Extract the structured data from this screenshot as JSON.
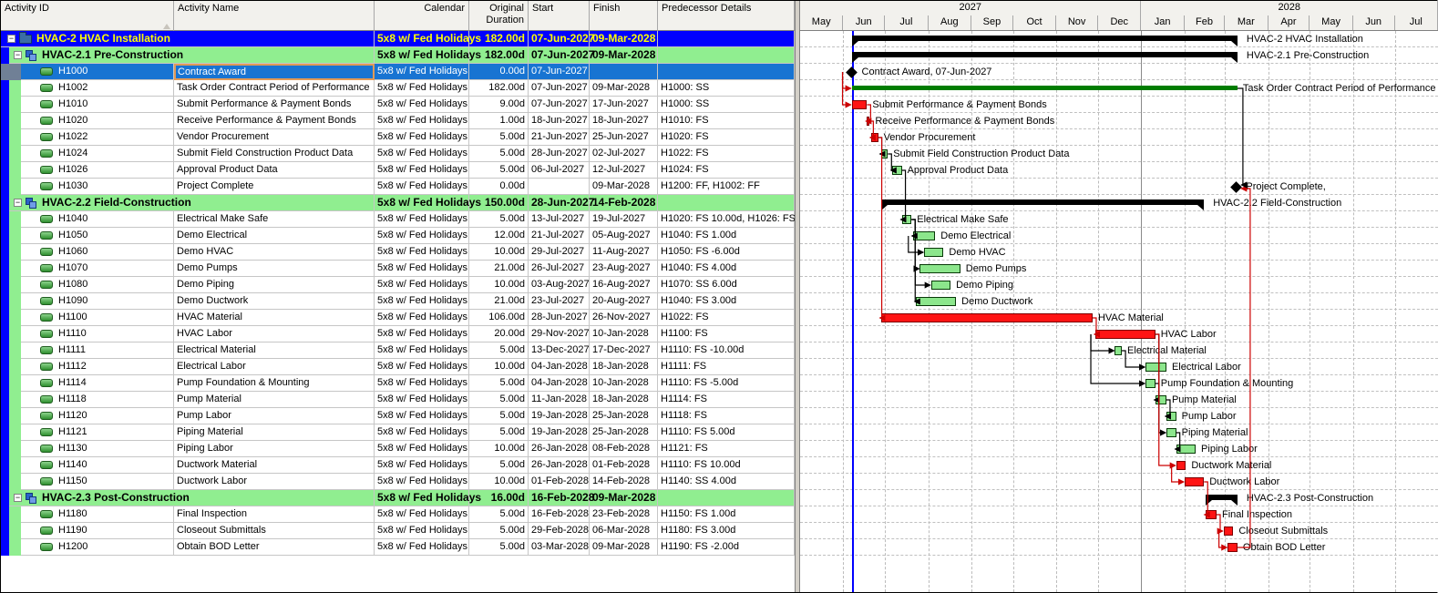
{
  "table": {
    "columns": [
      {
        "key": "id",
        "label": "Activity ID"
      },
      {
        "key": "name",
        "label": "Activity Name"
      },
      {
        "key": "cal",
        "label": "Calendar"
      },
      {
        "key": "dur",
        "label": "Original Duration"
      },
      {
        "key": "start",
        "label": "Start"
      },
      {
        "key": "fin",
        "label": "Finish"
      },
      {
        "key": "pred",
        "label": "Predecessor Details"
      }
    ],
    "rows": [
      {
        "type": "proj",
        "id": "HVAC-2",
        "name": "HVAC-2  HVAC Installation",
        "cal": "5x8 w/ Fed Holidays",
        "dur": "182.00d",
        "start": "07-Jun-2027",
        "fin": "09-Mar-2028",
        "pred": "",
        "bar": "summary",
        "bs": "2027-06-07",
        "bf": "2028-03-09",
        "label": "HVAC-2  HVAC Installation"
      },
      {
        "type": "wbs",
        "id": "HVAC-2.1",
        "name": "HVAC-2.1  Pre-Construction",
        "cal": "5x8 w/ Fed Holidays",
        "dur": "182.00d",
        "start": "07-Jun-2027",
        "fin": "09-Mar-2028",
        "pred": "",
        "bar": "summary",
        "bs": "2027-06-07",
        "bf": "2028-03-09",
        "label": "HVAC-2.1  Pre-Construction"
      },
      {
        "type": "act",
        "sel": true,
        "id": "H1000",
        "name": "Contract Award",
        "cal": "5x8 w/ Fed Holidays",
        "dur": "0.00d",
        "start": "07-Jun-2027",
        "fin": "",
        "pred": "",
        "bar": "milestone",
        "bs": "2027-06-07",
        "label": "Contract Award, 07-Jun-2027"
      },
      {
        "type": "act",
        "id": "H1002",
        "name": "Task Order Contract Period of Performance",
        "cal": "5x8 w/ Fed Holidays",
        "dur": "182.00d",
        "start": "07-Jun-2027",
        "fin": "09-Mar-2028",
        "pred": "H1000: SS",
        "bar": "line",
        "bs": "2027-06-07",
        "bf": "2028-03-09",
        "label": "Task Order Contract Period of Performance"
      },
      {
        "type": "act",
        "id": "H1010",
        "name": "Submit Performance & Payment Bonds",
        "cal": "5x8 w/ Fed Holidays",
        "dur": "9.00d",
        "start": "07-Jun-2027",
        "fin": "17-Jun-2027",
        "pred": "H1000: SS",
        "bar": "task",
        "crit": true,
        "bs": "2027-06-07",
        "bf": "2027-06-17",
        "label": "Submit Performance & Payment Bonds"
      },
      {
        "type": "act",
        "id": "H1020",
        "name": "Receive Performance & Payment Bonds",
        "cal": "5x8 w/ Fed Holidays",
        "dur": "1.00d",
        "start": "18-Jun-2027",
        "fin": "18-Jun-2027",
        "pred": "H1010: FS",
        "bar": "task",
        "crit": true,
        "bs": "2027-06-18",
        "bf": "2027-06-18",
        "label": "Receive Performance & Payment Bonds"
      },
      {
        "type": "act",
        "id": "H1022",
        "name": "Vendor Procurement",
        "cal": "5x8 w/ Fed Holidays",
        "dur": "5.00d",
        "start": "21-Jun-2027",
        "fin": "25-Jun-2027",
        "pred": "H1020: FS",
        "bar": "task",
        "crit": true,
        "bs": "2027-06-21",
        "bf": "2027-06-25",
        "label": "Vendor Procurement"
      },
      {
        "type": "act",
        "id": "H1024",
        "name": "Submit Field Construction Product Data",
        "cal": "5x8 w/ Fed Holidays",
        "dur": "5.00d",
        "start": "28-Jun-2027",
        "fin": "02-Jul-2027",
        "pred": "H1022: FS",
        "bar": "task",
        "bs": "2027-06-28",
        "bf": "2027-07-02",
        "label": "Submit Field Construction Product Data"
      },
      {
        "type": "act",
        "id": "H1026",
        "name": "Approval Product Data",
        "cal": "5x8 w/ Fed Holidays",
        "dur": "5.00d",
        "start": "06-Jul-2027",
        "fin": "12-Jul-2027",
        "pred": "H1024: FS",
        "bar": "task",
        "bs": "2027-07-06",
        "bf": "2027-07-12",
        "label": "Approval Product Data"
      },
      {
        "type": "act",
        "id": "H1030",
        "name": "Project Complete",
        "cal": "5x8 w/ Fed Holidays",
        "dur": "0.00d",
        "start": "",
        "fin": "09-Mar-2028",
        "pred": "H1200: FF, H1002: FF",
        "bar": "milestone",
        "bs": "2028-03-09",
        "label": "Project Complete,"
      },
      {
        "type": "wbs",
        "id": "HVAC-2.2",
        "name": "HVAC-2.2  Field-Construction",
        "cal": "5x8 w/ Fed Holidays",
        "dur": "150.00d",
        "start": "28-Jun-2027",
        "fin": "14-Feb-2028",
        "pred": "",
        "bar": "summary",
        "bs": "2027-06-28",
        "bf": "2028-02-14",
        "label": "HVAC-2.2  Field-Construction"
      },
      {
        "type": "act",
        "id": "H1040",
        "name": "Electrical Make Safe",
        "cal": "5x8 w/ Fed Holidays",
        "dur": "5.00d",
        "start": "13-Jul-2027",
        "fin": "19-Jul-2027",
        "pred": "H1020: FS 10.00d, H1026: FS",
        "bar": "task",
        "bs": "2027-07-13",
        "bf": "2027-07-19",
        "label": "Electrical Make Safe"
      },
      {
        "type": "act",
        "id": "H1050",
        "name": "Demo Electrical",
        "cal": "5x8 w/ Fed Holidays",
        "dur": "12.00d",
        "start": "21-Jul-2027",
        "fin": "05-Aug-2027",
        "pred": "H1040: FS 1.00d",
        "bar": "task",
        "bs": "2027-07-21",
        "bf": "2027-08-05",
        "label": "Demo Electrical"
      },
      {
        "type": "act",
        "id": "H1060",
        "name": "Demo HVAC",
        "cal": "5x8 w/ Fed Holidays",
        "dur": "10.00d",
        "start": "29-Jul-2027",
        "fin": "11-Aug-2027",
        "pred": "H1050: FS -6.00d",
        "bar": "task",
        "bs": "2027-07-29",
        "bf": "2027-08-11",
        "label": "Demo HVAC"
      },
      {
        "type": "act",
        "id": "H1070",
        "name": "Demo Pumps",
        "cal": "5x8 w/ Fed Holidays",
        "dur": "21.00d",
        "start": "26-Jul-2027",
        "fin": "23-Aug-2027",
        "pred": "H1040: FS 4.00d",
        "bar": "task",
        "bs": "2027-07-26",
        "bf": "2027-08-23",
        "label": "Demo Pumps"
      },
      {
        "type": "act",
        "id": "H1080",
        "name": "Demo Piping",
        "cal": "5x8 w/ Fed Holidays",
        "dur": "10.00d",
        "start": "03-Aug-2027",
        "fin": "16-Aug-2027",
        "pred": "H1070: SS 6.00d",
        "bar": "task",
        "bs": "2027-08-03",
        "bf": "2027-08-16",
        "label": "Demo Piping"
      },
      {
        "type": "act",
        "id": "H1090",
        "name": "Demo Ductwork",
        "cal": "5x8 w/ Fed Holidays",
        "dur": "21.00d",
        "start": "23-Jul-2027",
        "fin": "20-Aug-2027",
        "pred": "H1040: FS 3.00d",
        "bar": "task",
        "bs": "2027-07-23",
        "bf": "2027-08-20",
        "label": "Demo Ductwork"
      },
      {
        "type": "act",
        "id": "H1100",
        "name": "HVAC Material",
        "cal": "5x8 w/ Fed Holidays",
        "dur": "106.00d",
        "start": "28-Jun-2027",
        "fin": "26-Nov-2027",
        "pred": "H1022: FS",
        "bar": "task",
        "crit": true,
        "bs": "2027-06-28",
        "bf": "2027-11-26",
        "label": "HVAC Material"
      },
      {
        "type": "act",
        "id": "H1110",
        "name": "HVAC Labor",
        "cal": "5x8 w/ Fed Holidays",
        "dur": "20.00d",
        "start": "29-Nov-2027",
        "fin": "10-Jan-2028",
        "pred": "H1100: FS",
        "bar": "task",
        "crit": true,
        "bs": "2027-11-29",
        "bf": "2028-01-10",
        "label": "HVAC Labor"
      },
      {
        "type": "act",
        "id": "H1111",
        "name": "Electrical Material",
        "cal": "5x8 w/ Fed Holidays",
        "dur": "5.00d",
        "start": "13-Dec-2027",
        "fin": "17-Dec-2027",
        "pred": "H1110: FS -10.00d",
        "bar": "task",
        "bs": "2027-12-13",
        "bf": "2027-12-17",
        "label": "Electrical Material"
      },
      {
        "type": "act",
        "id": "H1112",
        "name": "Electrical Labor",
        "cal": "5x8 w/ Fed Holidays",
        "dur": "10.00d",
        "start": "04-Jan-2028",
        "fin": "18-Jan-2028",
        "pred": "H1111: FS",
        "bar": "task",
        "bs": "2028-01-04",
        "bf": "2028-01-18",
        "label": "Electrical Labor"
      },
      {
        "type": "act",
        "id": "H1114",
        "name": "Pump Foundation & Mounting",
        "cal": "5x8 w/ Fed Holidays",
        "dur": "5.00d",
        "start": "04-Jan-2028",
        "fin": "10-Jan-2028",
        "pred": "H1110: FS -5.00d",
        "bar": "task",
        "bs": "2028-01-04",
        "bf": "2028-01-10",
        "label": "Pump Foundation & Mounting"
      },
      {
        "type": "act",
        "id": "H1118",
        "name": "Pump Material",
        "cal": "5x8 w/ Fed Holidays",
        "dur": "5.00d",
        "start": "11-Jan-2028",
        "fin": "18-Jan-2028",
        "pred": "H1114: FS",
        "bar": "task",
        "bs": "2028-01-11",
        "bf": "2028-01-18",
        "label": "Pump Material"
      },
      {
        "type": "act",
        "id": "H1120",
        "name": "Pump Labor",
        "cal": "5x8 w/ Fed Holidays",
        "dur": "5.00d",
        "start": "19-Jan-2028",
        "fin": "25-Jan-2028",
        "pred": "H1118: FS",
        "bar": "task",
        "bs": "2028-01-19",
        "bf": "2028-01-25",
        "label": "Pump Labor"
      },
      {
        "type": "act",
        "id": "H1121",
        "name": "Piping Material",
        "cal": "5x8 w/ Fed Holidays",
        "dur": "5.00d",
        "start": "19-Jan-2028",
        "fin": "25-Jan-2028",
        "pred": "H1110: FS 5.00d",
        "bar": "task",
        "bs": "2028-01-19",
        "bf": "2028-01-25",
        "label": "Piping Material"
      },
      {
        "type": "act",
        "id": "H1130",
        "name": "Piping Labor",
        "cal": "5x8 w/ Fed Holidays",
        "dur": "10.00d",
        "start": "26-Jan-2028",
        "fin": "08-Feb-2028",
        "pred": "H1121: FS",
        "bar": "task",
        "bs": "2028-01-26",
        "bf": "2028-02-08",
        "label": "Piping Labor"
      },
      {
        "type": "act",
        "id": "H1140",
        "name": "Ductwork Material",
        "cal": "5x8 w/ Fed Holidays",
        "dur": "5.00d",
        "start": "26-Jan-2028",
        "fin": "01-Feb-2028",
        "pred": "H1110: FS 10.00d",
        "bar": "task",
        "crit": true,
        "bs": "2028-01-26",
        "bf": "2028-02-01",
        "label": "Ductwork Material"
      },
      {
        "type": "act",
        "id": "H1150",
        "name": "Ductwork Labor",
        "cal": "5x8 w/ Fed Holidays",
        "dur": "10.00d",
        "start": "01-Feb-2028",
        "fin": "14-Feb-2028",
        "pred": "H1140: SS 4.00d",
        "bar": "task",
        "crit": true,
        "bs": "2028-02-01",
        "bf": "2028-02-14",
        "label": "Ductwork Labor"
      },
      {
        "type": "wbs",
        "id": "HVAC-2.3",
        "name": "HVAC-2.3  Post-Construction",
        "cal": "5x8 w/ Fed Holidays",
        "dur": "16.00d",
        "start": "16-Feb-2028",
        "fin": "09-Mar-2028",
        "pred": "",
        "bar": "summary",
        "bs": "2028-02-16",
        "bf": "2028-03-09",
        "label": "HVAC-2.3  Post-Construction"
      },
      {
        "type": "act",
        "id": "H1180",
        "name": "Final Inspection",
        "cal": "5x8 w/ Fed Holidays",
        "dur": "5.00d",
        "start": "16-Feb-2028",
        "fin": "23-Feb-2028",
        "pred": "H1150: FS 1.00d",
        "bar": "task",
        "crit": true,
        "bs": "2028-02-16",
        "bf": "2028-02-23",
        "label": "Final Inspection"
      },
      {
        "type": "act",
        "id": "H1190",
        "name": "Closeout Submittals",
        "cal": "5x8 w/ Fed Holidays",
        "dur": "5.00d",
        "start": "29-Feb-2028",
        "fin": "06-Mar-2028",
        "pred": "H1180: FS 3.00d",
        "bar": "task",
        "crit": true,
        "bs": "2028-02-29",
        "bf": "2028-03-06",
        "label": "Closeout Submittals"
      },
      {
        "type": "act",
        "id": "H1200",
        "name": "Obtain BOD Letter",
        "cal": "5x8 w/ Fed Holidays",
        "dur": "5.00d",
        "start": "03-Mar-2028",
        "fin": "09-Mar-2028",
        "pred": "H1190: FS -2.00d",
        "bar": "task",
        "crit": true,
        "bs": "2028-03-03",
        "bf": "2028-03-09",
        "label": "Obtain BOD Letter"
      }
    ]
  },
  "timeline": {
    "start_month": "2027-05",
    "years": [
      {
        "label": "2027",
        "months": [
          "May",
          "Jun",
          "Jul",
          "Aug",
          "Sep",
          "Oct",
          "Nov",
          "Dec"
        ]
      },
      {
        "label": "2028",
        "months": [
          "Jan",
          "Feb",
          "Mar",
          "Apr",
          "May",
          "Jun",
          "Jul"
        ]
      }
    ],
    "data_date": "2027-06-07"
  },
  "gantt_links": [
    {
      "from": "H1000",
      "to": "H1002",
      "color": "red",
      "mode": "ss"
    },
    {
      "from": "H1000",
      "to": "H1010",
      "color": "red",
      "mode": "ss"
    },
    {
      "from": "H1010",
      "to": "H1020",
      "color": "red",
      "mode": "fs"
    },
    {
      "from": "H1020",
      "to": "H1022",
      "color": "red",
      "mode": "fs"
    },
    {
      "from": "H1022",
      "to": "H1024",
      "color": "black",
      "mode": "fs"
    },
    {
      "from": "H1024",
      "to": "H1026",
      "color": "black",
      "mode": "fs"
    },
    {
      "from": "H1026",
      "to": "H1040",
      "color": "black",
      "mode": "fs"
    },
    {
      "from": "H1040",
      "to": "H1050",
      "color": "black",
      "mode": "fs"
    },
    {
      "from": "H1050",
      "to": "H1060",
      "color": "black",
      "mode": "ss"
    },
    {
      "from": "H1040",
      "to": "H1070",
      "color": "black",
      "mode": "fs"
    },
    {
      "from": "H1070",
      "to": "H1080",
      "color": "black",
      "mode": "ss"
    },
    {
      "from": "H1040",
      "to": "H1090",
      "color": "black",
      "mode": "fs"
    },
    {
      "from": "H1022",
      "to": "H1100",
      "color": "red",
      "mode": "fs"
    },
    {
      "from": "H1100",
      "to": "H1110",
      "color": "red",
      "mode": "fs"
    },
    {
      "from": "H1110",
      "to": "H1111",
      "color": "black",
      "mode": "ss"
    },
    {
      "from": "H1111",
      "to": "H1112",
      "color": "black",
      "mode": "fs"
    },
    {
      "from": "H1110",
      "to": "H1114",
      "color": "black",
      "mode": "ss"
    },
    {
      "from": "H1114",
      "to": "H1118",
      "color": "black",
      "mode": "fs"
    },
    {
      "from": "H1118",
      "to": "H1120",
      "color": "black",
      "mode": "fs"
    },
    {
      "from": "H1110",
      "to": "H1121",
      "color": "black",
      "mode": "fs"
    },
    {
      "from": "H1121",
      "to": "H1130",
      "color": "black",
      "mode": "fs"
    },
    {
      "from": "H1110",
      "to": "H1140",
      "color": "red",
      "mode": "fs"
    },
    {
      "from": "H1140",
      "to": "H1150",
      "color": "red",
      "mode": "ss"
    },
    {
      "from": "H1150",
      "to": "H1180",
      "color": "red",
      "mode": "fs"
    },
    {
      "from": "H1180",
      "to": "H1190",
      "color": "red",
      "mode": "fs"
    },
    {
      "from": "H1190",
      "to": "H1200",
      "color": "red",
      "mode": "ss"
    },
    {
      "from": "H1200",
      "to": "H1030",
      "color": "red",
      "mode": "ff",
      "lane": 14
    },
    {
      "from": "H1002",
      "to": "H1030",
      "color": "black",
      "mode": "ff",
      "lane": 6
    }
  ],
  "colors": {
    "project_band": "#0000ff",
    "wbs_band": "#90ee90",
    "selection": "#1874d2",
    "edit_border": "#e19a57",
    "critical": "#ff1414",
    "normal_task": "#8ce68c",
    "summary": "#000000",
    "period_line": "#007d00",
    "data_date_line": "#0000ff",
    "link_red": "#cc0000",
    "link_black": "#000000"
  }
}
